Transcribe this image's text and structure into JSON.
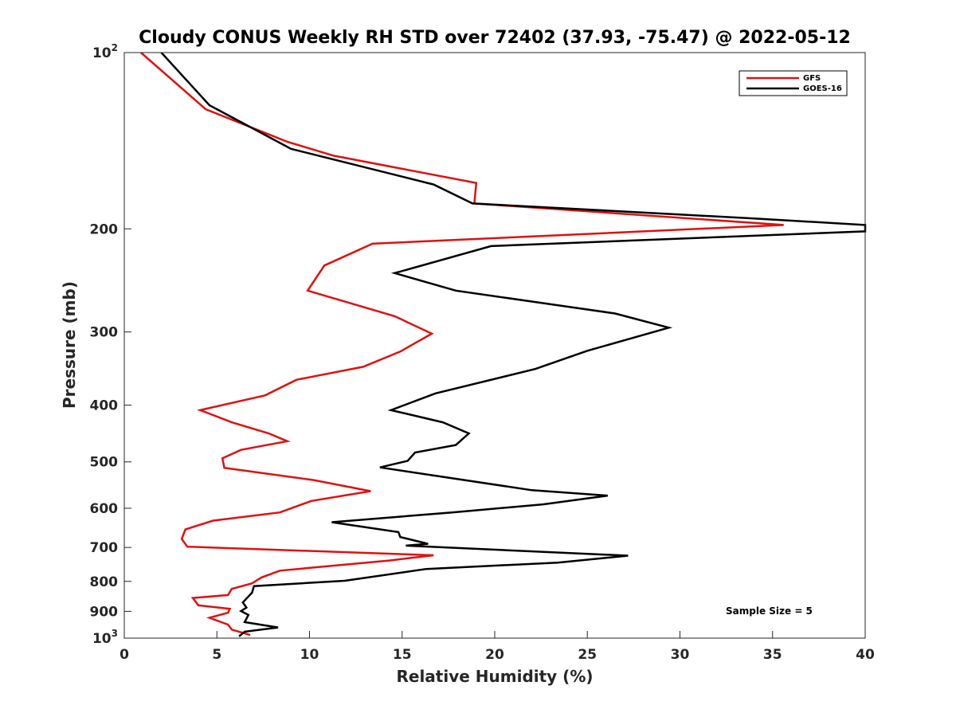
{
  "chart_data": {
    "type": "line",
    "title": "Cloudy CONUS Weekly RH STD over 72402 (37.93, -75.47) @ 2022-05-12",
    "xlabel": "Relative Humidity (%)",
    "ylabel": "Pressure (mb)",
    "xlim": [
      0,
      40
    ],
    "ylim": [
      100,
      1000
    ],
    "yscale": "log",
    "y_reversed": true,
    "grid": false,
    "legend_position": "top-right",
    "x_ticks": [
      "0",
      "5",
      "10",
      "15",
      "20",
      "25",
      "30",
      "35",
      "40"
    ],
    "y_ticks": [
      {
        "value": 100,
        "base": "10",
        "exp": "2"
      },
      {
        "value": 200,
        "label": "200"
      },
      {
        "value": 300,
        "label": "300"
      },
      {
        "value": 400,
        "label": "400"
      },
      {
        "value": 500,
        "label": "500"
      },
      {
        "value": 600,
        "label": "600"
      },
      {
        "value": 700,
        "label": "700"
      },
      {
        "value": 800,
        "label": "800"
      },
      {
        "value": 900,
        "label": "900"
      },
      {
        "value": 1000,
        "base": "10",
        "exp": "3"
      }
    ],
    "annotation": "Sample Size = 5",
    "series": [
      {
        "name": "GFS",
        "color": "#e01010",
        "points": [
          [
            0.9,
            100
          ],
          [
            4.4,
            125
          ],
          [
            8.8,
            142
          ],
          [
            11.3,
            150
          ],
          [
            19.0,
            167
          ],
          [
            18.9,
            181
          ],
          [
            35.6,
            197
          ],
          [
            13.4,
            212
          ],
          [
            10.8,
            231
          ],
          [
            9.9,
            255
          ],
          [
            14.6,
            282
          ],
          [
            16.6,
            302
          ],
          [
            14.9,
            324
          ],
          [
            12.9,
            344
          ],
          [
            9.3,
            362
          ],
          [
            7.6,
            385
          ],
          [
            4.1,
            408
          ],
          [
            5.8,
            428
          ],
          [
            7.8,
            447
          ],
          [
            8.8,
            461
          ],
          [
            6.3,
            477
          ],
          [
            5.3,
            493
          ],
          [
            5.4,
            512
          ],
          [
            10.2,
            537
          ],
          [
            13.3,
            561
          ],
          [
            10.1,
            583
          ],
          [
            8.4,
            610
          ],
          [
            4.8,
            630
          ],
          [
            3.3,
            652
          ],
          [
            3.1,
            677
          ],
          [
            3.4,
            698
          ],
          [
            16.7,
            722
          ],
          [
            14.3,
            737
          ],
          [
            8.4,
            767
          ],
          [
            7.4,
            788
          ],
          [
            6.9,
            806
          ],
          [
            5.8,
            824
          ],
          [
            5.6,
            844
          ],
          [
            3.7,
            854
          ],
          [
            4.0,
            879
          ],
          [
            5.7,
            891
          ],
          [
            5.6,
            905
          ],
          [
            4.6,
            923
          ],
          [
            5.6,
            948
          ],
          [
            5.8,
            967
          ],
          [
            6.8,
            988
          ]
        ]
      },
      {
        "name": "GOES-16",
        "color": "#000000",
        "points": [
          [
            2.0,
            100
          ],
          [
            4.6,
            123
          ],
          [
            9.0,
            146
          ],
          [
            16.7,
            168
          ],
          [
            18.8,
            181
          ],
          [
            34.0,
            192
          ],
          [
            40.0,
            197
          ],
          [
            40.0,
            202
          ],
          [
            19.8,
            214
          ],
          [
            14.6,
            238
          ],
          [
            17.9,
            255
          ],
          [
            26.5,
            279
          ],
          [
            29.4,
            295
          ],
          [
            25.0,
            323
          ],
          [
            22.2,
            347
          ],
          [
            16.8,
            382
          ],
          [
            14.4,
            408
          ],
          [
            17.2,
            428
          ],
          [
            18.6,
            447
          ],
          [
            17.9,
            468
          ],
          [
            15.7,
            482
          ],
          [
            15.3,
            498
          ],
          [
            13.8,
            511
          ],
          [
            22.0,
            559
          ],
          [
            26.1,
            571
          ],
          [
            22.6,
            591
          ],
          [
            17.7,
            610
          ],
          [
            11.2,
            634
          ],
          [
            14.8,
            659
          ],
          [
            14.9,
            672
          ],
          [
            16.4,
            690
          ],
          [
            15.2,
            695
          ],
          [
            27.2,
            723
          ],
          [
            23.4,
            743
          ],
          [
            16.3,
            762
          ],
          [
            11.9,
            798
          ],
          [
            7.0,
            815
          ],
          [
            6.9,
            836
          ],
          [
            6.4,
            869
          ],
          [
            6.6,
            887
          ],
          [
            6.3,
            899
          ],
          [
            6.7,
            913
          ],
          [
            6.5,
            939
          ],
          [
            8.3,
            959
          ],
          [
            6.5,
            975
          ],
          [
            6.2,
            993
          ]
        ]
      }
    ]
  }
}
